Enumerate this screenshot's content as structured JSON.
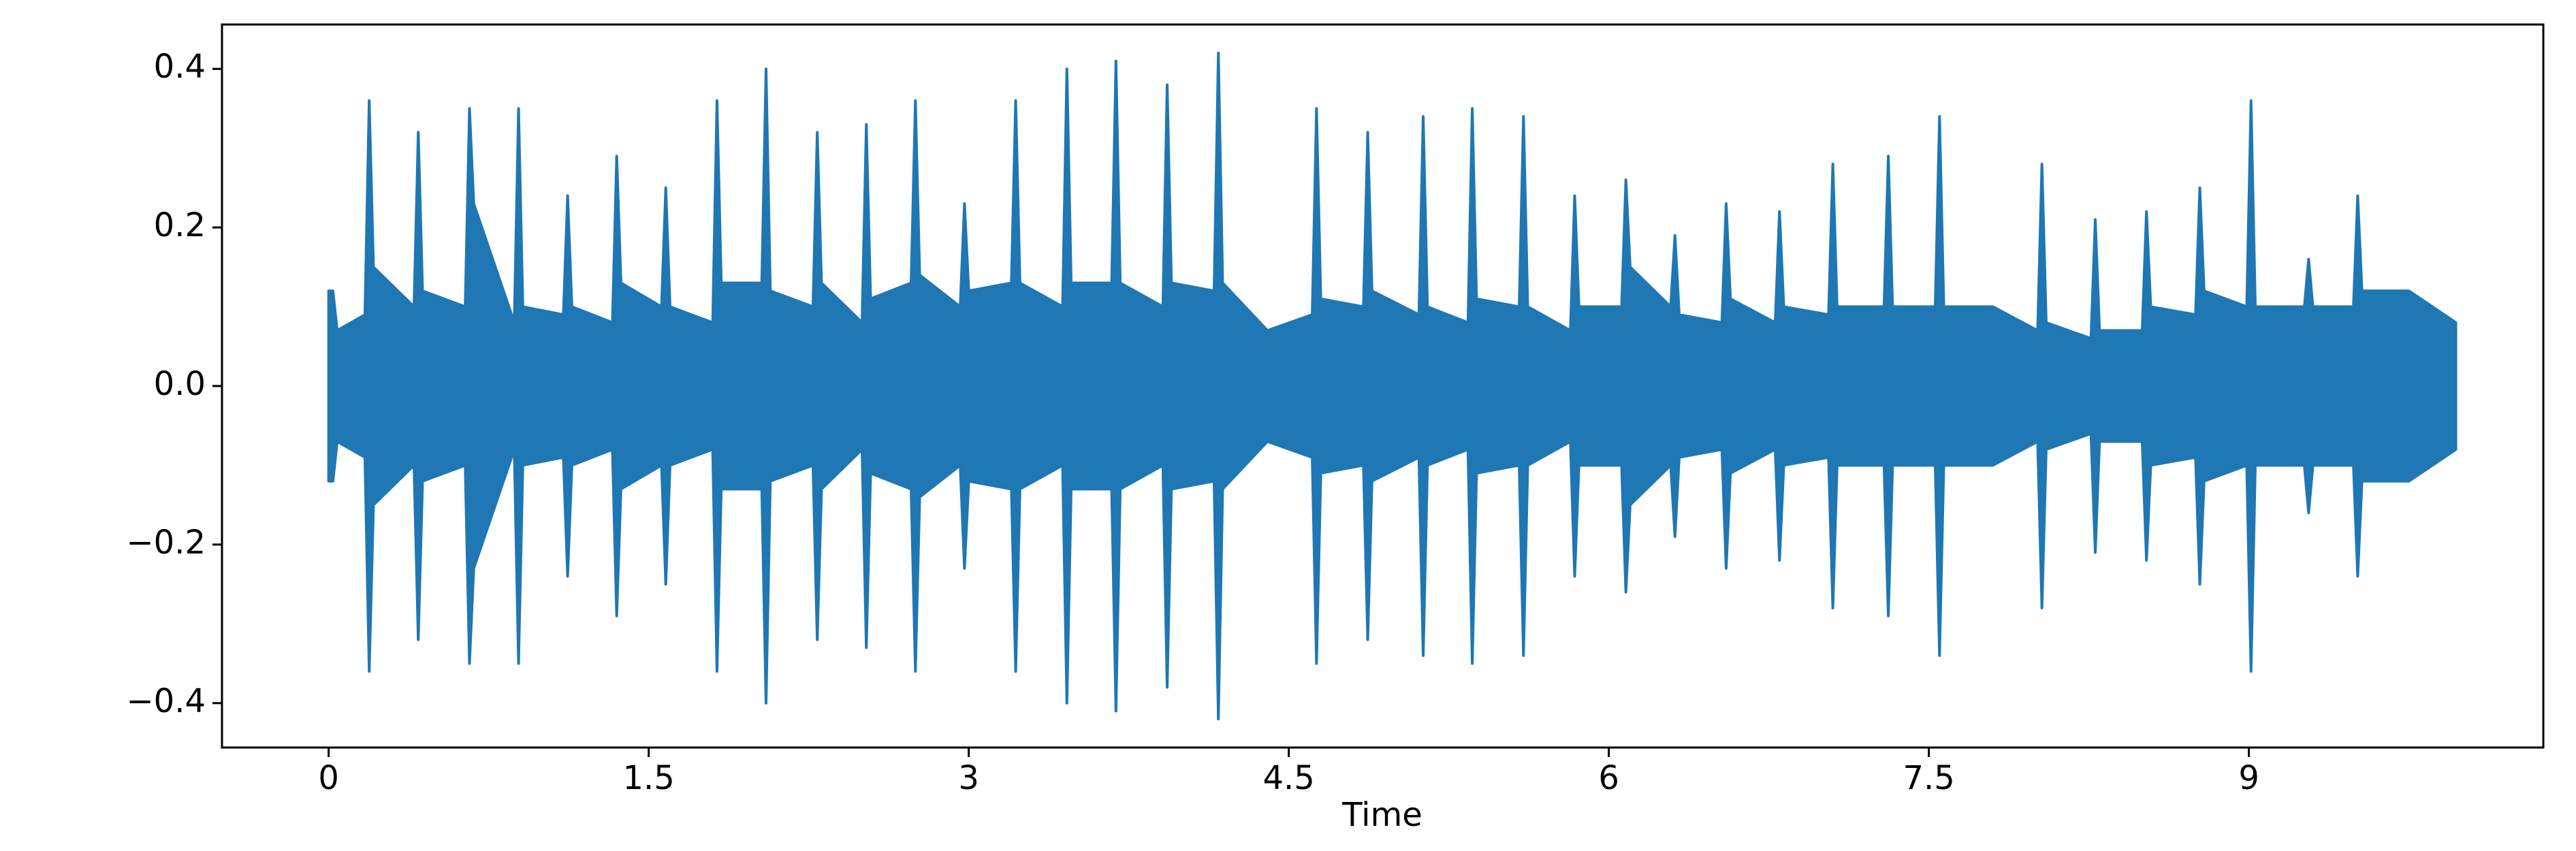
{
  "chart_data": {
    "type": "waveform",
    "x_label": "Time",
    "color": "#1f77b4",
    "x": [
      0,
      0.02,
      0.04,
      0.17,
      0.19,
      0.21,
      0.4,
      0.42,
      0.44,
      0.64,
      0.66,
      0.68,
      0.87,
      0.89,
      0.91,
      1.1,
      1.12,
      1.14,
      1.33,
      1.35,
      1.37,
      1.56,
      1.58,
      1.6,
      1.8,
      1.82,
      1.84,
      2.03,
      2.05,
      2.07,
      2.27,
      2.29,
      2.31,
      2.5,
      2.52,
      2.54,
      2.73,
      2.75,
      2.77,
      2.96,
      2.98,
      3.0,
      3.2,
      3.22,
      3.24,
      3.44,
      3.46,
      3.48,
      3.67,
      3.69,
      3.71,
      3.91,
      3.93,
      3.95,
      4.15,
      4.17,
      4.19,
      4.4,
      4.61,
      4.63,
      4.65,
      4.85,
      4.87,
      4.89,
      5.11,
      5.13,
      5.15,
      5.34,
      5.36,
      5.38,
      5.58,
      5.6,
      5.62,
      5.82,
      5.84,
      5.86,
      6.06,
      6.08,
      6.1,
      6.29,
      6.31,
      6.33,
      6.53,
      6.55,
      6.57,
      6.78,
      6.8,
      6.82,
      7.03,
      7.05,
      7.07,
      7.29,
      7.31,
      7.33,
      7.53,
      7.55,
      7.57,
      7.8,
      8.01,
      8.03,
      8.05,
      8.26,
      8.28,
      8.3,
      8.5,
      8.52,
      8.54,
      8.75,
      8.77,
      8.79,
      8.99,
      9.01,
      9.03,
      9.26,
      9.28,
      9.3,
      9.49,
      9.51,
      9.53,
      9.75,
      9.97
    ],
    "values": [
      0.12,
      0.12,
      0.07,
      0.09,
      0.36,
      0.15,
      0.1,
      0.32,
      0.12,
      0.1,
      0.35,
      0.23,
      0.08,
      0.35,
      0.1,
      0.09,
      0.24,
      0.1,
      0.08,
      0.29,
      0.13,
      0.1,
      0.25,
      0.1,
      0.08,
      0.36,
      0.13,
      0.13,
      0.4,
      0.12,
      0.1,
      0.32,
      0.13,
      0.08,
      0.33,
      0.11,
      0.13,
      0.36,
      0.14,
      0.1,
      0.23,
      0.12,
      0.13,
      0.36,
      0.13,
      0.1,
      0.4,
      0.13,
      0.13,
      0.41,
      0.13,
      0.1,
      0.38,
      0.13,
      0.12,
      0.42,
      0.13,
      0.07,
      0.09,
      0.35,
      0.11,
      0.1,
      0.32,
      0.12,
      0.09,
      0.34,
      0.1,
      0.08,
      0.35,
      0.11,
      0.1,
      0.34,
      0.1,
      0.07,
      0.24,
      0.1,
      0.1,
      0.26,
      0.15,
      0.1,
      0.19,
      0.09,
      0.08,
      0.23,
      0.11,
      0.08,
      0.22,
      0.1,
      0.09,
      0.28,
      0.1,
      0.1,
      0.29,
      0.1,
      0.1,
      0.34,
      0.1,
      0.1,
      0.07,
      0.28,
      0.08,
      0.06,
      0.21,
      0.07,
      0.07,
      0.22,
      0.1,
      0.09,
      0.25,
      0.12,
      0.1,
      0.36,
      0.1,
      0.1,
      0.16,
      0.1,
      0.1,
      0.24,
      0.12,
      0.12,
      0.08
    ],
    "xlim": [
      -0.5,
      10.38
    ],
    "xticks": [
      0,
      1.5,
      3,
      4.5,
      6,
      7.5,
      9
    ],
    "ylim": [
      -0.456,
      0.456
    ],
    "yticks": [
      {
        "value": -0.4,
        "label": "−0.4"
      },
      {
        "value": -0.2,
        "label": "−0.2"
      },
      {
        "value": 0,
        "label": "0.0"
      },
      0.2,
      0.4
    ]
  }
}
